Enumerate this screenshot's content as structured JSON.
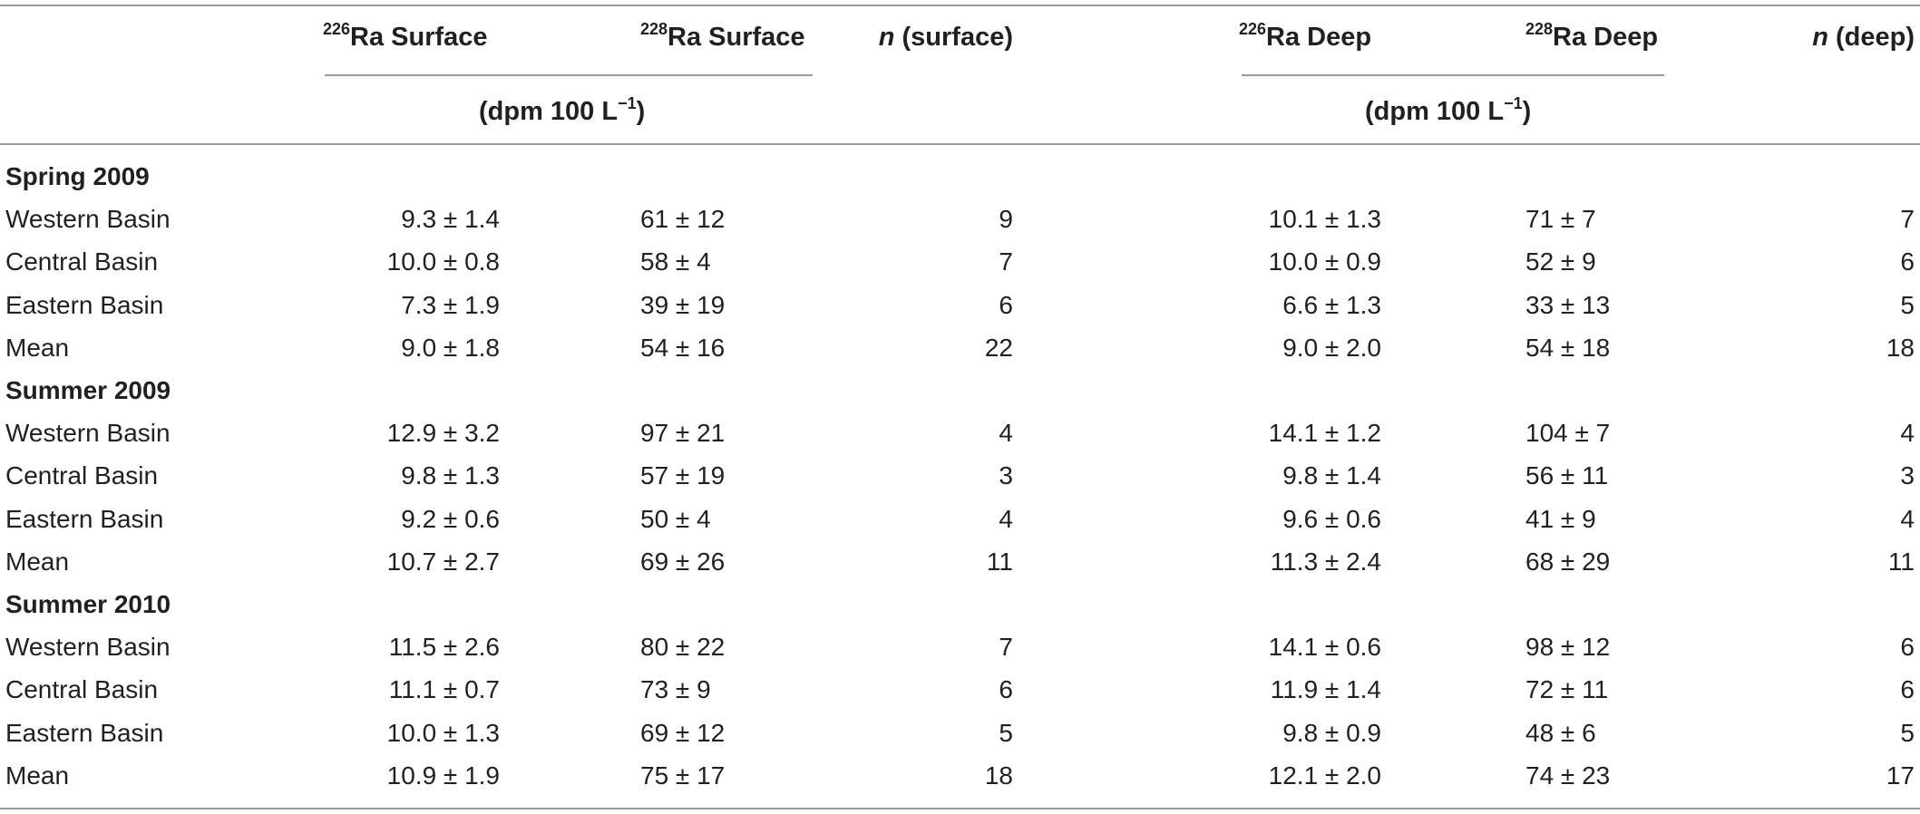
{
  "table": {
    "columns": {
      "ra226_surface": {
        "sup": "226",
        "text": "Ra Surface"
      },
      "ra228_surface": {
        "sup": "228",
        "text": "Ra Surface"
      },
      "n_surface": {
        "italic": "n",
        "text": " (surface)"
      },
      "ra226_deep": {
        "sup": "226",
        "text": "Ra Deep"
      },
      "ra228_deep": {
        "sup": "228",
        "text": "Ra Deep"
      },
      "n_deep": {
        "italic": "n",
        "text": " (deep)"
      }
    },
    "units": {
      "surface": {
        "pre": "(dpm 100 L",
        "sup": "−1",
        "post": ")"
      },
      "deep": {
        "pre": "(dpm 100 L",
        "sup": "−1",
        "post": ")"
      }
    },
    "groups": [
      {
        "title": "Spring 2009",
        "rows": [
          {
            "label": "Western Basin",
            "s226": "9.3 ± 1.4",
            "s228": "61 ± 12",
            "ns": "9",
            "d226": "10.1 ± 1.3",
            "d228": "71 ± 7",
            "nd": "7"
          },
          {
            "label": "Central Basin",
            "s226": "10.0 ± 0.8",
            "s228": "58 ± 4",
            "ns": "7",
            "d226": "10.0 ± 0.9",
            "d228": "52 ± 9",
            "nd": "6"
          },
          {
            "label": "Eastern Basin",
            "s226": "7.3 ± 1.9",
            "s228": "39 ± 19",
            "ns": "6",
            "d226": "6.6 ± 1.3",
            "d228": "33 ± 13",
            "nd": "5"
          },
          {
            "label": "Mean",
            "s226": "9.0 ± 1.8",
            "s228": "54 ± 16",
            "ns": "22",
            "d226": "9.0 ± 2.0",
            "d228": "54 ± 18",
            "nd": "18"
          }
        ]
      },
      {
        "title": "Summer 2009",
        "rows": [
          {
            "label": "Western Basin",
            "s226": "12.9 ± 3.2",
            "s228": "97 ± 21",
            "ns": "4",
            "d226": "14.1 ± 1.2",
            "d228": "104 ± 7",
            "nd": "4"
          },
          {
            "label": "Central Basin",
            "s226": "9.8 ± 1.3",
            "s228": "57 ± 19",
            "ns": "3",
            "d226": "9.8 ± 1.4",
            "d228": "56 ± 11",
            "nd": "3"
          },
          {
            "label": "Eastern Basin",
            "s226": "9.2 ± 0.6",
            "s228": "50 ± 4",
            "ns": "4",
            "d226": "9.6 ± 0.6",
            "d228": "41 ± 9",
            "nd": "4"
          },
          {
            "label": "Mean",
            "s226": "10.7 ± 2.7",
            "s228": "69 ± 26",
            "ns": "11",
            "d226": "11.3 ± 2.4",
            "d228": "68 ± 29",
            "nd": "11"
          }
        ]
      },
      {
        "title": "Summer 2010",
        "rows": [
          {
            "label": "Western Basin",
            "s226": "11.5 ± 2.6",
            "s228": "80 ± 22",
            "ns": "7",
            "d226": "14.1 ± 0.6",
            "d228": "98 ± 12",
            "nd": "6"
          },
          {
            "label": "Central Basin",
            "s226": "11.1 ± 0.7",
            "s228": "73 ± 9",
            "ns": "6",
            "d226": "11.9 ± 1.4",
            "d228": "72 ± 11",
            "nd": "6"
          },
          {
            "label": "Eastern Basin",
            "s226": "10.0 ± 1.3",
            "s228": "69 ± 12",
            "ns": "5",
            "d226": "9.8 ± 0.9",
            "d228": "48 ± 6",
            "nd": "5"
          },
          {
            "label": "Mean",
            "s226": "10.9 ± 1.9",
            "s228": "75 ± 17",
            "ns": "18",
            "d226": "12.1 ± 2.0",
            "d228": "74 ± 23",
            "nd": "17"
          }
        ]
      }
    ]
  }
}
